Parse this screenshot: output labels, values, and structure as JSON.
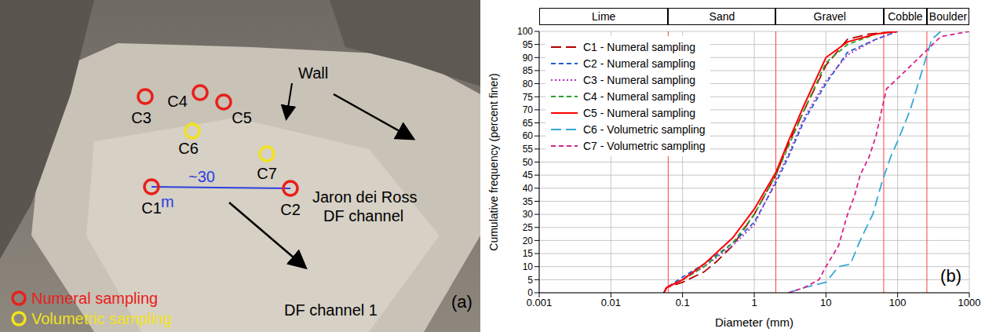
{
  "panel_a": {
    "label": "(a)",
    "markers": [
      {
        "label": "C1",
        "kind": "numeral"
      },
      {
        "label": "C2",
        "kind": "numeral"
      },
      {
        "label": "C3",
        "kind": "numeral"
      },
      {
        "label": "C4",
        "kind": "numeral"
      },
      {
        "label": "C5",
        "kind": "numeral"
      },
      {
        "label": "C6",
        "kind": "volumetric"
      },
      {
        "label": "C7",
        "kind": "volumetric"
      }
    ],
    "legend": {
      "numeral": {
        "text": "Numeral sampling",
        "color": "#e8201a"
      },
      "volumetric": {
        "text": "Volumetric sampling",
        "color": "#f2e21c"
      }
    },
    "distance": "~30 m",
    "annotations": {
      "wall": "Wall",
      "jaron": "Jaron dei Ross DF channel",
      "channel1": "DF channel 1"
    }
  },
  "chart_data": {
    "type": "line",
    "label": "(b)",
    "x_label": "Diameter (mm)",
    "y_label": "Cumulative frequency (percent finer)",
    "log": "x",
    "xlim": [
      0.001,
      1000
    ],
    "xticks": [
      0.001,
      0.01,
      0.1,
      1,
      10,
      100,
      1000
    ],
    "ylim": [
      0,
      100
    ],
    "yticks": [
      0,
      5,
      10,
      15,
      20,
      25,
      30,
      35,
      40,
      45,
      50,
      55,
      60,
      65,
      70,
      75,
      80,
      85,
      90,
      95,
      100
    ],
    "grid": true,
    "legend": "upper left",
    "size_classes": [
      {
        "name": "Lime",
        "from": 0.001,
        "to": 0.063
      },
      {
        "name": "Sand",
        "from": 0.063,
        "to": 2
      },
      {
        "name": "Gravel",
        "from": 2,
        "to": 64
      },
      {
        "name": "Cobble",
        "from": 64,
        "to": 256
      },
      {
        "name": "Boulder",
        "from": 256,
        "to": 1000
      }
    ],
    "series": [
      {
        "name": "C1 - Numeral sampling",
        "color": "#b00000",
        "line_style": "long_dash",
        "x": [
          0.055,
          0.06,
          0.1,
          0.2,
          0.3,
          0.5,
          1,
          2,
          3,
          5,
          10,
          20,
          40,
          100
        ],
        "values": [
          0,
          2,
          4,
          8,
          12,
          18,
          30,
          45,
          57,
          70,
          87,
          97,
          99,
          100
        ]
      },
      {
        "name": "C2 - Numeral sampling",
        "color": "#1f5fd6",
        "line_style": "dashed",
        "x": [
          0.055,
          0.06,
          0.1,
          0.2,
          0.5,
          1,
          2,
          3,
          5,
          10,
          20,
          50,
          100
        ],
        "values": [
          0,
          2,
          6,
          11,
          19,
          27,
          42,
          52,
          66,
          80,
          92,
          97,
          100
        ]
      },
      {
        "name": "C3 - Numeral sampling",
        "color": "#b030c0",
        "line_style": "dotted",
        "x": [
          0.055,
          0.06,
          0.1,
          0.2,
          0.5,
          1,
          2,
          3,
          5,
          10,
          20,
          50,
          100
        ],
        "values": [
          0,
          2,
          5,
          10,
          18,
          26,
          43,
          53,
          67,
          81,
          91,
          97,
          100
        ]
      },
      {
        "name": "C4 - Numeral sampling",
        "color": "#2ca02c",
        "line_style": "dashed",
        "x": [
          0.055,
          0.06,
          0.1,
          0.2,
          0.5,
          1,
          2,
          3,
          5,
          10,
          20,
          50,
          100
        ],
        "values": [
          0,
          2,
          5,
          10,
          19,
          30,
          45,
          56,
          70,
          88,
          95,
          99,
          100
        ]
      },
      {
        "name": "C5 - Numeral sampling",
        "color": "#ff0000",
        "line_style": "solid",
        "x": [
          0.055,
          0.06,
          0.1,
          0.2,
          0.5,
          1,
          2,
          3,
          5,
          10,
          20,
          50,
          100
        ],
        "values": [
          0,
          2,
          5,
          11,
          21,
          32,
          46,
          58,
          72,
          90,
          96,
          99,
          100
        ]
      },
      {
        "name": "C6 - Volumetric sampling",
        "color": "#36a9d9",
        "line_style": "long_dash",
        "x": [
          3,
          5,
          10,
          15,
          22,
          30,
          45,
          60,
          80,
          100,
          150,
          250,
          300,
          400
        ],
        "values": [
          0,
          2,
          4,
          10,
          11,
          20,
          30,
          42,
          52,
          58,
          70,
          90,
          97,
          100
        ]
      },
      {
        "name": "C7 - Volumetric sampling",
        "color": "#d6248c",
        "line_style": "dashed",
        "x": [
          3,
          5,
          8,
          10,
          15,
          20,
          25,
          30,
          40,
          50,
          60,
          70,
          100,
          200,
          400,
          1000
        ],
        "values": [
          0,
          2,
          5,
          10,
          18,
          30,
          37,
          45,
          52,
          60,
          70,
          78,
          82,
          90,
          98,
          100
        ]
      }
    ]
  }
}
